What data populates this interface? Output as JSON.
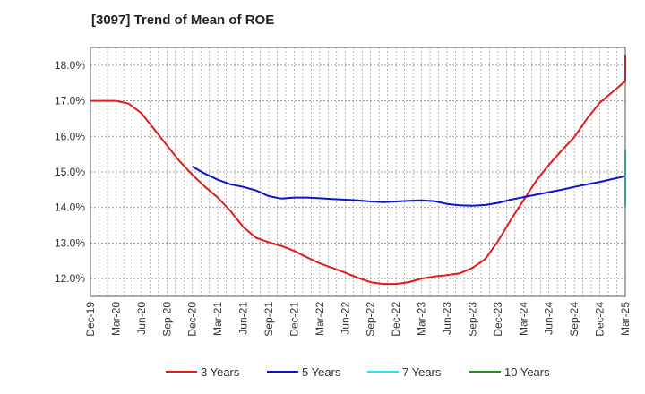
{
  "chart_data": {
    "type": "line",
    "title": "[3097]  Trend of Mean of ROE",
    "xlabel": "",
    "ylabel": "",
    "x_ticks": [
      "Dec-19",
      "Mar-20",
      "Jun-20",
      "Sep-20",
      "Dec-20",
      "Mar-21",
      "Jun-21",
      "Sep-21",
      "Dec-21",
      "Mar-22",
      "Jun-22",
      "Sep-22",
      "Dec-22",
      "Mar-23",
      "Jun-23",
      "Sep-23",
      "Dec-23",
      "Mar-24",
      "Jun-24",
      "Sep-24",
      "Dec-24",
      "Mar-25"
    ],
    "y_ticks": [
      "12.0%",
      "13.0%",
      "14.0%",
      "15.0%",
      "16.0%",
      "17.0%",
      "18.0%"
    ],
    "ylim": [
      11.5,
      18.5
    ],
    "grid": true,
    "legend_position": "bottom",
    "series": [
      {
        "name": "3 Years",
        "color": "#e31a1c",
        "start_index": 0,
        "values": [
          17.0,
          17.0,
          17.0,
          16.92,
          16.65,
          16.2,
          15.75,
          15.3,
          14.92,
          14.58,
          14.28,
          13.9,
          13.45,
          13.15,
          13.02,
          12.92,
          12.78,
          12.6,
          12.43,
          12.3,
          12.17,
          12.02,
          11.9,
          11.85,
          11.85,
          11.9,
          12.0,
          12.06,
          12.1,
          12.15,
          12.3,
          12.55,
          13.05,
          13.65,
          14.2,
          14.75,
          15.2,
          15.6,
          15.98,
          16.5,
          16.95,
          17.25,
          17.55,
          17.82,
          18.05,
          18.3
        ]
      },
      {
        "name": "5 Years",
        "color": "#0a14c8",
        "start_index": 4,
        "values": [
          15.15,
          14.95,
          14.78,
          14.65,
          14.58,
          14.48,
          14.32,
          14.25,
          14.28,
          14.28,
          14.26,
          14.24,
          14.22,
          14.2,
          14.17,
          14.15,
          14.17,
          14.19,
          14.2,
          14.18,
          14.1,
          14.06,
          14.05,
          14.07,
          14.13,
          14.22,
          14.29,
          14.36,
          14.43,
          14.5,
          14.58,
          14.65,
          14.72,
          14.8,
          14.88,
          15.0
        ]
      },
      {
        "name": "7 Years",
        "color": "#22e6ee",
        "start_index": 23,
        "values": [
          14.03,
          14.1,
          14.2,
          14.3,
          14.35,
          14.4,
          14.48,
          14.58,
          14.72,
          14.88,
          15.0,
          15.1,
          15.18,
          15.26,
          15.35,
          15.43,
          15.5,
          15.56,
          15.6,
          15.62,
          15.62,
          15.62,
          15.63
        ]
      },
      {
        "name": "10 Years",
        "color": "#228b22",
        "start_index": 0,
        "values": []
      }
    ]
  }
}
